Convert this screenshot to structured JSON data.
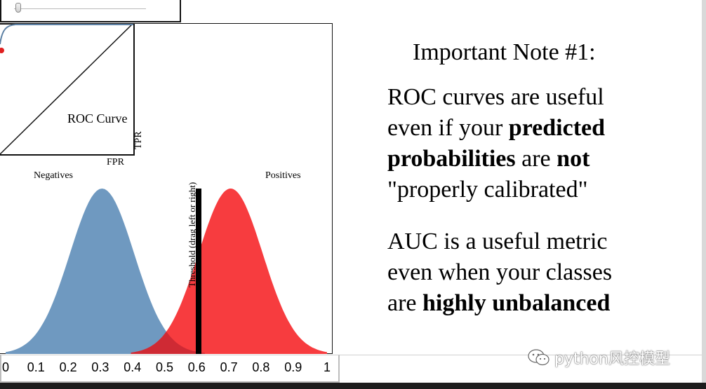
{
  "slider": {
    "value": 0.0
  },
  "roc": {
    "title": "ROC Curve",
    "ylabel": "TPR",
    "xlabel": "FPR"
  },
  "distributions": {
    "negatives_label": "Negatives",
    "positives_label": "Positives",
    "negative_color": "#6f99c0",
    "positive_color": "#f73c3f",
    "negative_mean": 0.3,
    "positive_mean": 0.7,
    "threshold_label": "Threshold (drag left or right)",
    "threshold_value": 0.6
  },
  "axis": {
    "ticks": [
      "0",
      "0.1",
      "0.2",
      "0.3",
      "0.4",
      "0.5",
      "0.6",
      "0.7",
      "0.8",
      "0.9",
      "1"
    ]
  },
  "note": {
    "title": "Important Note #1:",
    "p1": [
      [
        {
          "t": "ROC curves are useful",
          "b": false
        }
      ],
      [
        {
          "t": "even if your ",
          "b": false
        },
        {
          "t": "predicted",
          "b": true
        }
      ],
      [
        {
          "t": "probabilities",
          "b": true
        },
        {
          "t": " are ",
          "b": false
        },
        {
          "t": "not",
          "b": true
        }
      ],
      [
        {
          "t": "\"properly calibrated\"",
          "b": false
        }
      ]
    ],
    "p2": [
      [
        {
          "t": "AUC is a useful metric",
          "b": false
        }
      ],
      [
        {
          "t": "even when your classes",
          "b": false
        }
      ],
      [
        {
          "t": "are ",
          "b": false
        },
        {
          "t": "highly unbalanced",
          "b": true
        }
      ]
    ]
  },
  "watermark": {
    "text": "python风控模型",
    "icon": "wechat-icon"
  }
}
